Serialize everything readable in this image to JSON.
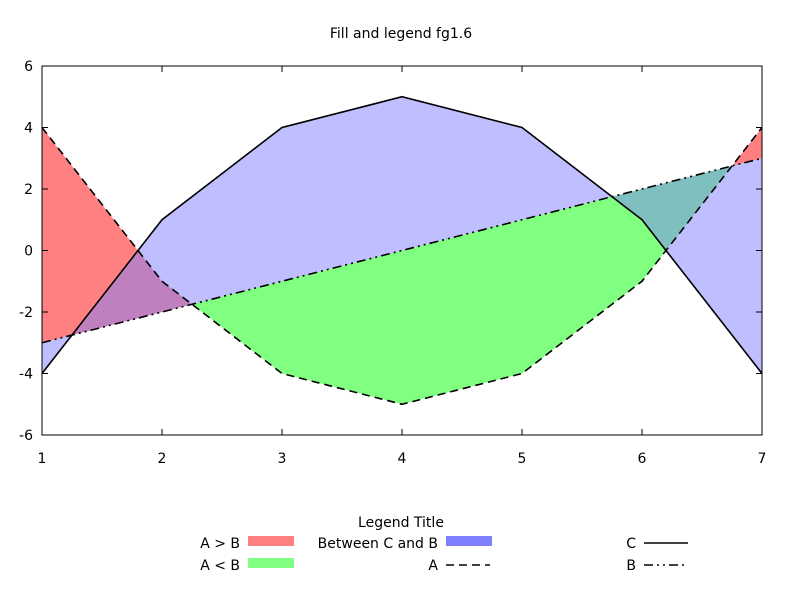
{
  "chart_data": {
    "type": "area",
    "title": "Fill and legend fg1.6",
    "xlabel": "",
    "ylabel": "",
    "xlim": [
      1,
      7
    ],
    "ylim": [
      -6,
      6
    ],
    "x_ticks": [
      1,
      2,
      3,
      4,
      5,
      6,
      7
    ],
    "y_ticks": [
      -6,
      -4,
      -2,
      0,
      2,
      4,
      6
    ],
    "grid": false,
    "legend": {
      "title": "Legend Title",
      "placement": "bottom",
      "entries": [
        {
          "label": "A > B",
          "kind": "fill",
          "color": "#ff8080"
        },
        {
          "label": "A < B",
          "kind": "fill",
          "color": "#80ff80"
        },
        {
          "label": "Between C and B",
          "kind": "fill",
          "color": "#8080ff"
        },
        {
          "label": "A",
          "kind": "line",
          "dash": "dashed"
        },
        {
          "label": "C",
          "kind": "line",
          "dash": "solid"
        },
        {
          "label": "B",
          "kind": "line",
          "dash": "dash-dot"
        }
      ]
    },
    "x": [
      1,
      2,
      3,
      4,
      5,
      6,
      7
    ],
    "series": [
      {
        "name": "A",
        "values": [
          4,
          -1,
          -4,
          -5,
          -4,
          -1,
          4
        ],
        "color": "#000000",
        "dash": "dashed"
      },
      {
        "name": "B",
        "values": [
          -3,
          -2,
          -1,
          0,
          1,
          2,
          3
        ],
        "color": "#000000",
        "dash": "dash-dot"
      },
      {
        "name": "C",
        "values": [
          -4,
          1,
          4,
          5,
          4,
          1,
          -4
        ],
        "color": "#000000",
        "dash": "solid"
      }
    ],
    "fills": [
      {
        "label": "A > B",
        "between": [
          "A",
          "B"
        ],
        "where": "A>B",
        "color": "#ff8080"
      },
      {
        "label": "A < B",
        "between": [
          "A",
          "B"
        ],
        "where": "A<B",
        "color": "#80ff80"
      },
      {
        "label": "Between C and B",
        "between": [
          "C",
          "B"
        ],
        "where": "all",
        "color": "#8080ff"
      }
    ]
  }
}
